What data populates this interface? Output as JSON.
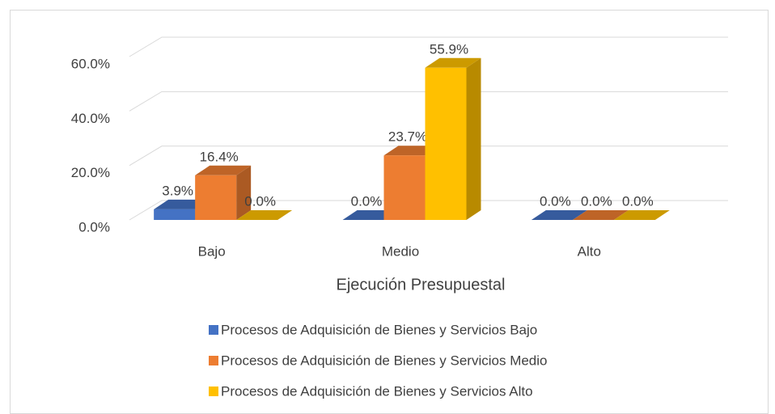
{
  "chart_data": {
    "type": "bar3d",
    "x_label": "Ejecución Presupuestal",
    "categories": [
      "Bajo",
      "Medio",
      "Alto"
    ],
    "series": [
      {
        "name": "Procesos de Adquisición de Bienes y Servicios Bajo",
        "color": "#4472c4",
        "values": [
          3.9,
          0,
          0
        ],
        "value_labels": [
          "3.9%",
          "0.0%",
          "0.0%"
        ]
      },
      {
        "name": "Procesos de Adquisición de Bienes y Servicios Medio",
        "color": "#ed7d31",
        "values": [
          16.4,
          23.7,
          0
        ],
        "value_labels": [
          "16.4%",
          "23.7%",
          "0.0%"
        ]
      },
      {
        "name": "Procesos de Adquisición de Bienes y Servicios Alto",
        "color": "#ffc000",
        "values": [
          0,
          55.9,
          0
        ],
        "value_labels": [
          "0.0%",
          "55.9%",
          "0.0%"
        ]
      }
    ],
    "ylim": [
      0,
      60
    ],
    "yticks": [
      {
        "value": 0,
        "label": "0.0%"
      },
      {
        "value": 20,
        "label": "20.0%"
      },
      {
        "value": 40,
        "label": "40.0%"
      },
      {
        "value": 60,
        "label": "60.0%"
      }
    ],
    "grid": true,
    "legend": "bottom"
  }
}
